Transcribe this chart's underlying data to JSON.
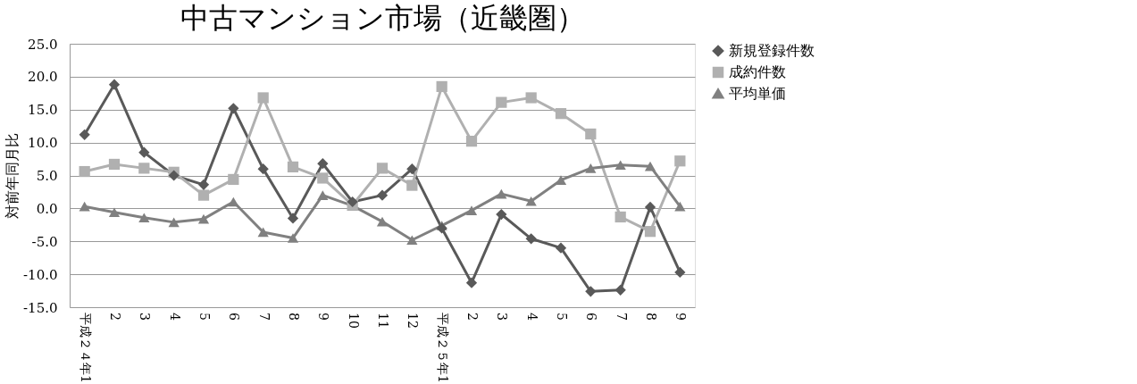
{
  "chart_data": {
    "type": "line",
    "title": "中古マンション市場（近畿圏）",
    "ylabel": "対前年同月比",
    "categories": [
      "平成２４年1",
      "2",
      "3",
      "4",
      "5",
      "6",
      "7",
      "8",
      "9",
      "10",
      "11",
      "12",
      "平成２５年1",
      "2",
      "3",
      "4",
      "5",
      "6",
      "7",
      "8",
      "9"
    ],
    "series": [
      {
        "name": "新規登録件数",
        "color": "#595959",
        "marker": "diamond",
        "values": [
          11.2,
          18.8,
          8.5,
          5.0,
          3.6,
          15.2,
          6.0,
          -1.5,
          6.8,
          1.0,
          2.0,
          6.0,
          -3.0,
          -11.3,
          -0.9,
          -4.6,
          -6.0,
          -12.6,
          -12.4,
          0.2,
          -9.7
        ]
      },
      {
        "name": "成約件数",
        "color": "#b0b0b0",
        "marker": "square",
        "values": [
          5.6,
          6.7,
          6.1,
          5.5,
          2.0,
          4.4,
          16.8,
          6.3,
          4.6,
          0.5,
          6.1,
          3.5,
          18.5,
          10.2,
          16.1,
          16.8,
          14.4,
          11.3,
          -1.3,
          -3.5,
          7.2
        ]
      },
      {
        "name": "平均単価",
        "color": "#808080",
        "marker": "triangle",
        "values": [
          0.3,
          -0.6,
          -1.4,
          -2.1,
          -1.6,
          1.0,
          -3.6,
          -4.5,
          2.0,
          0.4,
          -2.0,
          -4.8,
          -2.6,
          -0.3,
          2.2,
          1.1,
          4.3,
          6.1,
          6.6,
          6.4,
          0.3
        ]
      }
    ],
    "ylim": [
      -15,
      25
    ],
    "yticks": [
      {
        "value": -15,
        "label": "-15.0"
      },
      {
        "value": -10,
        "label": "-10.0"
      },
      {
        "value": -5,
        "label": "-5.0"
      },
      {
        "value": 0,
        "label": "0.0"
      },
      {
        "value": 5,
        "label": "5.0"
      },
      {
        "value": 10,
        "label": "10.0"
      },
      {
        "value": 15,
        "label": "15.0"
      },
      {
        "value": 20,
        "label": "20.0"
      },
      {
        "value": 25,
        "label": "25.0"
      }
    ],
    "grid": "y",
    "legend": "right",
    "line_style": "solid"
  }
}
